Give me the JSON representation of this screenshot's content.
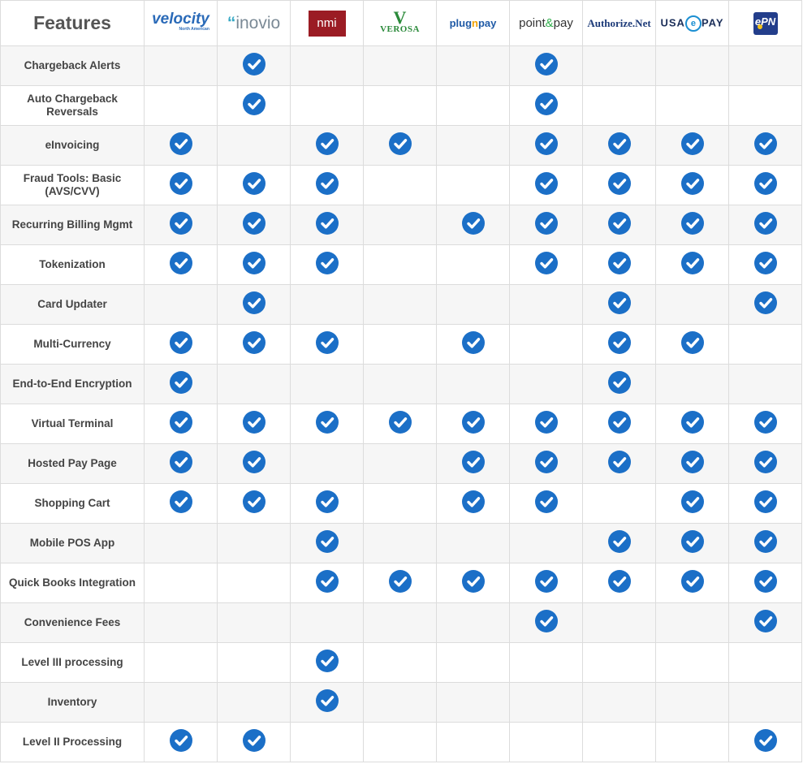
{
  "header_title": "Features",
  "colors": {
    "check_fill": "#1b6fc7",
    "check_mark": "#ffffff",
    "accent_row": "#f6f6f6"
  },
  "providers": [
    {
      "id": "velocity",
      "logo_text": "velocity",
      "logo_sub": "North American"
    },
    {
      "id": "inovio",
      "logo_text": "inovio"
    },
    {
      "id": "nmi",
      "logo_text": "nmi"
    },
    {
      "id": "verosa",
      "logo_text": "VEROSA"
    },
    {
      "id": "plugnpay",
      "logo_text": "plugnpay"
    },
    {
      "id": "pointandpay",
      "logo_text": "point&pay"
    },
    {
      "id": "authorizenet",
      "logo_text": "Authorize.Net"
    },
    {
      "id": "usaepay",
      "logo_text": "USAePAY"
    },
    {
      "id": "epn",
      "logo_text": "ePN"
    }
  ],
  "features": [
    {
      "name": "Chargeback Alerts",
      "supported": [
        false,
        true,
        false,
        false,
        false,
        true,
        false,
        false,
        false
      ]
    },
    {
      "name": "Auto Chargeback Reversals",
      "supported": [
        false,
        true,
        false,
        false,
        false,
        true,
        false,
        false,
        false
      ]
    },
    {
      "name": "eInvoicing",
      "supported": [
        true,
        false,
        true,
        true,
        false,
        true,
        true,
        true,
        true
      ]
    },
    {
      "name": "Fraud Tools: Basic (AVS/CVV)",
      "supported": [
        true,
        true,
        true,
        false,
        false,
        true,
        true,
        true,
        true
      ]
    },
    {
      "name": "Recurring Billing Mgmt",
      "supported": [
        true,
        true,
        true,
        false,
        true,
        true,
        true,
        true,
        true
      ]
    },
    {
      "name": "Tokenization",
      "supported": [
        true,
        true,
        true,
        false,
        false,
        true,
        true,
        true,
        true
      ]
    },
    {
      "name": "Card Updater",
      "supported": [
        false,
        true,
        false,
        false,
        false,
        false,
        true,
        false,
        true
      ]
    },
    {
      "name": "Multi-Currency",
      "supported": [
        true,
        true,
        true,
        false,
        true,
        false,
        true,
        true,
        false
      ]
    },
    {
      "name": "End-to-End Encryption",
      "supported": [
        true,
        false,
        false,
        false,
        false,
        false,
        true,
        false,
        false
      ]
    },
    {
      "name": "Virtual Terminal",
      "supported": [
        true,
        true,
        true,
        true,
        true,
        true,
        true,
        true,
        true
      ]
    },
    {
      "name": "Hosted Pay Page",
      "supported": [
        true,
        true,
        false,
        false,
        true,
        true,
        true,
        true,
        true
      ]
    },
    {
      "name": "Shopping Cart",
      "supported": [
        true,
        true,
        true,
        false,
        true,
        true,
        false,
        true,
        true
      ]
    },
    {
      "name": "Mobile POS App",
      "supported": [
        false,
        false,
        true,
        false,
        false,
        false,
        true,
        true,
        true
      ]
    },
    {
      "name": "Quick Books Integration",
      "supported": [
        false,
        false,
        true,
        true,
        true,
        true,
        true,
        true,
        true
      ]
    },
    {
      "name": "Convenience Fees",
      "supported": [
        false,
        false,
        false,
        false,
        false,
        true,
        false,
        false,
        true
      ]
    },
    {
      "name": "Level III processing",
      "supported": [
        false,
        false,
        true,
        false,
        false,
        false,
        false,
        false,
        false
      ]
    },
    {
      "name": "Inventory",
      "supported": [
        false,
        false,
        true,
        false,
        false,
        false,
        false,
        false,
        false
      ]
    },
    {
      "name": "Level II Processing",
      "supported": [
        true,
        true,
        false,
        false,
        false,
        false,
        false,
        false,
        true
      ]
    }
  ]
}
